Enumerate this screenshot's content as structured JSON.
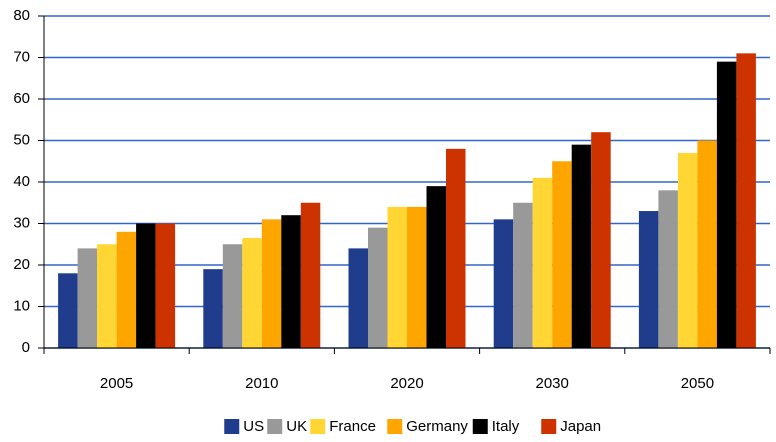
{
  "chart_data": {
    "type": "bar",
    "categories": [
      "2005",
      "2010",
      "2020",
      "2030",
      "2050"
    ],
    "series": [
      {
        "name": "US",
        "color": "#1f3d8c",
        "values": [
          18,
          19,
          24,
          31,
          33
        ]
      },
      {
        "name": "UK",
        "color": "#999999",
        "values": [
          24,
          25,
          29,
          35,
          38
        ]
      },
      {
        "name": "France",
        "color": "#ffd633",
        "values": [
          25,
          26.5,
          34,
          41,
          47
        ]
      },
      {
        "name": "Germany",
        "color": "#ffa500",
        "values": [
          28,
          31,
          34,
          45,
          50
        ]
      },
      {
        "name": "Italy",
        "color": "#000000",
        "values": [
          30,
          32,
          39,
          49,
          69
        ]
      },
      {
        "name": "Japan",
        "color": "#cc3300",
        "values": [
          30,
          35,
          48,
          52,
          71
        ]
      }
    ],
    "ylim": [
      0,
      80
    ],
    "yticks": [
      0,
      10,
      20,
      30,
      40,
      50,
      60,
      70,
      80
    ],
    "grid": true,
    "grid_color": "#3366cc",
    "legend": "bottom"
  }
}
